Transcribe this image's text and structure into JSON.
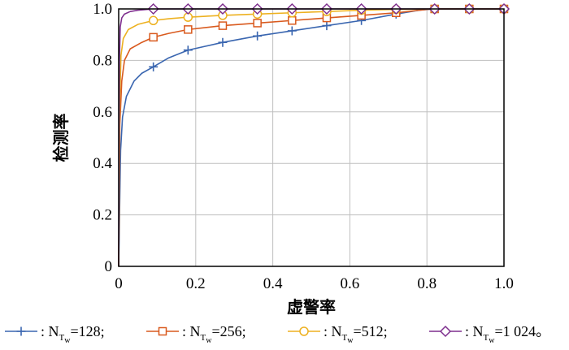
{
  "chart_data": {
    "type": "line",
    "xlabel": "虚警率",
    "ylabel": "检测率",
    "xlim": [
      0,
      1.0
    ],
    "ylim": [
      0,
      1.0
    ],
    "x_ticks": [
      "0",
      "0.2",
      "0.4",
      "0.6",
      "0.8",
      "1.0"
    ],
    "y_ticks": [
      "0",
      "0.2",
      "0.4",
      "0.6",
      "0.8",
      "1.0"
    ],
    "grid": true,
    "legend_position": "bottom",
    "series": [
      {
        "name": "N_Tw=128;",
        "legend_prefix": ": N",
        "legend_sub": "T",
        "legend_subsub": "w",
        "legend_suffix": "=128;",
        "color": "#3a66b0",
        "marker": "plus",
        "x": [
          0,
          0.005,
          0.01,
          0.02,
          0.04,
          0.06,
          0.09,
          0.13,
          0.18,
          0.27,
          0.36,
          0.45,
          0.54,
          0.63,
          0.72,
          0.78,
          0.82,
          0.91,
          1.0
        ],
        "y": [
          0,
          0.45,
          0.58,
          0.66,
          0.72,
          0.75,
          0.775,
          0.81,
          0.84,
          0.87,
          0.895,
          0.915,
          0.935,
          0.955,
          0.98,
          0.995,
          1.0,
          1.0,
          1.0
        ],
        "marker_x": [
          0.09,
          0.18,
          0.27,
          0.36,
          0.45,
          0.54,
          0.63,
          0.72,
          0.82,
          0.91,
          1.0
        ]
      },
      {
        "name": "N_Tw=256;",
        "legend_prefix": ": N",
        "legend_sub": "T",
        "legend_subsub": "w",
        "legend_suffix": "=256;",
        "color": "#d95a1e",
        "marker": "square",
        "x": [
          0,
          0.003,
          0.008,
          0.015,
          0.03,
          0.06,
          0.09,
          0.13,
          0.18,
          0.27,
          0.36,
          0.45,
          0.54,
          0.63,
          0.72,
          0.8,
          0.82,
          0.91,
          1.0
        ],
        "y": [
          0,
          0.55,
          0.72,
          0.8,
          0.845,
          0.87,
          0.89,
          0.905,
          0.92,
          0.935,
          0.945,
          0.955,
          0.965,
          0.975,
          0.985,
          0.998,
          1.0,
          1.0,
          1.0
        ],
        "marker_x": [
          0.09,
          0.18,
          0.27,
          0.36,
          0.45,
          0.54,
          0.63,
          0.72,
          0.82,
          0.91,
          1.0
        ]
      },
      {
        "name": "N_Tw=512;",
        "legend_prefix": ": N",
        "legend_sub": "T",
        "legend_subsub": "w",
        "legend_suffix": "=512;",
        "color": "#edb120",
        "marker": "circle",
        "x": [
          0,
          0.003,
          0.006,
          0.012,
          0.025,
          0.05,
          0.09,
          0.13,
          0.18,
          0.27,
          0.36,
          0.45,
          0.54,
          0.63,
          0.72,
          0.82,
          0.91,
          1.0
        ],
        "y": [
          0,
          0.65,
          0.82,
          0.885,
          0.92,
          0.94,
          0.955,
          0.962,
          0.968,
          0.975,
          0.98,
          0.985,
          0.99,
          0.995,
          0.998,
          1.0,
          1.0,
          1.0
        ],
        "marker_x": [
          0.09,
          0.18,
          0.27,
          0.36,
          0.45,
          0.54,
          0.63,
          0.72,
          0.82,
          0.91,
          1.0
        ]
      },
      {
        "name": "N_Tw=1 024。",
        "legend_prefix": ": N",
        "legend_sub": "T",
        "legend_subsub": "w",
        "legend_suffix": "=1 024。",
        "color": "#7e2f8e",
        "marker": "diamond",
        "x": [
          0,
          0.002,
          0.004,
          0.008,
          0.015,
          0.03,
          0.05,
          0.09,
          0.18,
          0.27,
          0.36,
          0.45,
          0.54,
          0.63,
          0.72,
          0.82,
          0.91,
          1.0
        ],
        "y": [
          0,
          0.8,
          0.93,
          0.965,
          0.98,
          0.99,
          0.995,
          1.0,
          1.0,
          1.0,
          1.0,
          1.0,
          1.0,
          1.0,
          1.0,
          1.0,
          1.0,
          1.0
        ],
        "marker_x": [
          0.09,
          0.18,
          0.27,
          0.36,
          0.45,
          0.54,
          0.63,
          0.72,
          0.82,
          0.91,
          1.0
        ]
      }
    ]
  }
}
